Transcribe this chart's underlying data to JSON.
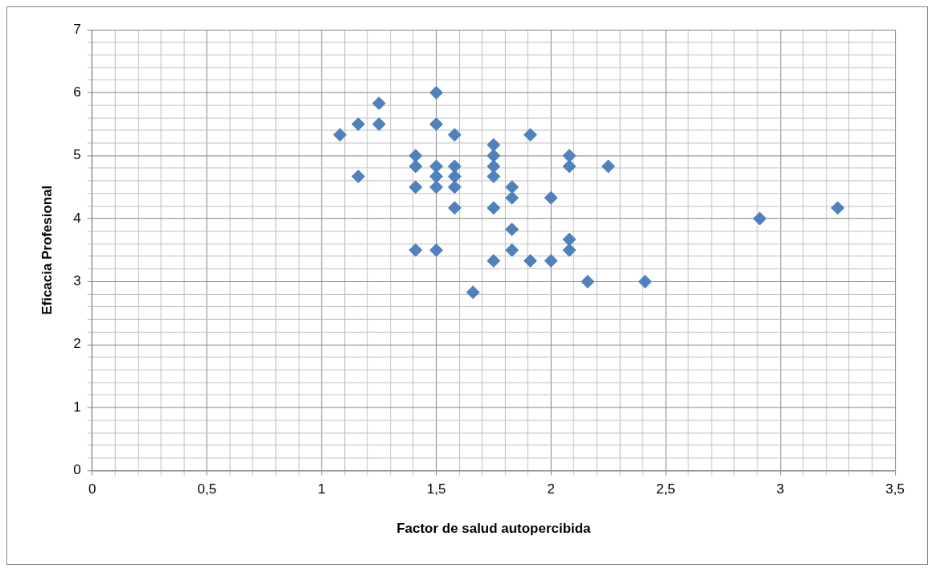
{
  "chart_data": {
    "type": "scatter",
    "xlabel": "Factor de salud autopercibida",
    "ylabel": "Eficacia Profesional",
    "x": [
      1.08,
      1.16,
      1.16,
      1.25,
      1.25,
      1.41,
      1.41,
      1.41,
      1.41,
      1.5,
      1.5,
      1.5,
      1.5,
      1.5,
      1.5,
      1.58,
      1.58,
      1.58,
      1.58,
      1.58,
      1.66,
      1.75,
      1.75,
      1.75,
      1.75,
      1.75,
      1.75,
      1.83,
      1.83,
      1.83,
      1.83,
      1.91,
      1.91,
      2.0,
      2.0,
      2.08,
      2.08,
      2.08,
      2.08,
      2.16,
      2.25,
      2.41,
      2.91,
      3.25
    ],
    "series": [
      {
        "color": "#4f81bd",
        "values": [
          5.33,
          5.5,
          4.67,
          5.83,
          5.5,
          5.0,
          4.83,
          4.5,
          3.5,
          6.0,
          5.5,
          4.83,
          4.67,
          4.5,
          3.5,
          5.33,
          4.83,
          4.67,
          4.5,
          4.17,
          2.83,
          5.17,
          5.0,
          4.83,
          4.67,
          4.17,
          3.33,
          4.5,
          4.33,
          3.83,
          3.5,
          5.33,
          3.33,
          4.33,
          3.33,
          5.0,
          4.83,
          3.67,
          3.5,
          3.0,
          4.83,
          3.0,
          4.0,
          4.17
        ]
      }
    ],
    "xlim": [
      0,
      3.5
    ],
    "xticks": [
      0,
      {
        "value": 0.1,
        "label": null
      },
      {
        "value": 0.2,
        "label": null
      },
      {
        "value": 0.3,
        "label": null
      },
      {
        "value": 0.4,
        "label": null
      },
      {
        "value": 0.5,
        "label": "0,5"
      },
      {
        "value": 0.6,
        "label": null
      },
      {
        "value": 0.7,
        "label": null
      },
      {
        "value": 0.8,
        "label": null
      },
      {
        "value": 0.9,
        "label": null
      },
      1,
      {
        "value": 1.1,
        "label": null
      },
      {
        "value": 1.2,
        "label": null
      },
      {
        "value": 1.3,
        "label": null
      },
      {
        "value": 1.4,
        "label": null
      },
      {
        "value": 1.5,
        "label": "1,5"
      },
      {
        "value": 1.6,
        "label": null
      },
      {
        "value": 1.7,
        "label": null
      },
      {
        "value": 1.8,
        "label": null
      },
      {
        "value": 1.9,
        "label": null
      },
      2,
      {
        "value": 2.1,
        "label": null
      },
      {
        "value": 2.2,
        "label": null
      },
      {
        "value": 2.3,
        "label": null
      },
      {
        "value": 2.4,
        "label": null
      },
      {
        "value": 2.5,
        "label": "2,5"
      },
      {
        "value": 2.6,
        "label": null
      },
      {
        "value": 2.7,
        "label": null
      },
      {
        "value": 2.8,
        "label": null
      },
      {
        "value": 2.9,
        "label": null
      },
      3,
      {
        "value": 3.1,
        "label": null
      },
      {
        "value": 3.2,
        "label": null
      },
      {
        "value": 3.3,
        "label": null
      },
      {
        "value": 3.4,
        "label": null
      },
      {
        "value": 3.5,
        "label": "3,5"
      }
    ],
    "ylim": [
      0,
      7
    ],
    "yticks": [
      0,
      {
        "value": 0.2,
        "label": null
      },
      {
        "value": 0.4,
        "label": null
      },
      {
        "value": 0.6,
        "label": null
      },
      {
        "value": 0.8,
        "label": null
      },
      1,
      {
        "value": 1.2,
        "label": null
      },
      {
        "value": 1.4,
        "label": null
      },
      {
        "value": 1.6,
        "label": null
      },
      {
        "value": 1.8,
        "label": null
      },
      2,
      {
        "value": 2.2,
        "label": null
      },
      {
        "value": 2.4,
        "label": null
      },
      {
        "value": 2.6,
        "label": null
      },
      {
        "value": 2.8,
        "label": null
      },
      3,
      {
        "value": 3.2,
        "label": null
      },
      {
        "value": 3.4,
        "label": null
      },
      {
        "value": 3.6,
        "label": null
      },
      {
        "value": 3.8,
        "label": null
      },
      4,
      {
        "value": 4.2,
        "label": null
      },
      {
        "value": 4.4,
        "label": null
      },
      {
        "value": 4.6,
        "label": null
      },
      {
        "value": 4.8,
        "label": null
      },
      5,
      {
        "value": 5.2,
        "label": null
      },
      {
        "value": 5.4,
        "label": null
      },
      {
        "value": 5.6,
        "label": null
      },
      {
        "value": 5.8,
        "label": null
      },
      6,
      {
        "value": 6.2,
        "label": null
      },
      {
        "value": 6.4,
        "label": null
      },
      {
        "value": 6.6,
        "label": null
      },
      {
        "value": 6.8,
        "label": null
      },
      7
    ],
    "grid": true,
    "legend": false,
    "marker": "diamond"
  }
}
